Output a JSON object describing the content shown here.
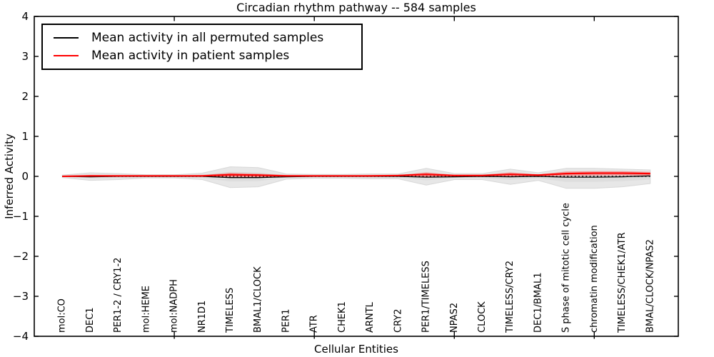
{
  "figure": {
    "background": "#ffffff"
  },
  "chart_data": {
    "type": "line",
    "title": "Circadian rhythm pathway -- 584 samples",
    "xlabel": "Cellular Entities",
    "ylabel": "Inferred Activity",
    "ylim": [
      -4,
      4
    ],
    "grid": false,
    "legend_position": "upper left",
    "ytick_values": [
      4,
      3,
      2,
      1,
      0,
      -1,
      -2,
      -3,
      -4
    ],
    "ytick_labels": [
      "4",
      "3",
      "2",
      "1",
      "0",
      "−1",
      "−2",
      "−3",
      "−4"
    ],
    "xtick_marks_at_category_numbers": [
      5,
      10,
      15,
      20
    ],
    "categories": [
      "mol:CO",
      "DEC1",
      "PER1-2 / CRY1-2",
      "mol:HEME",
      "mol:NADPH",
      "NR1D1",
      "TIMELESS",
      "BMAL1/CLOCK",
      "PER1",
      "ATR",
      "CHEK1",
      "ARNTL",
      "CRY2",
      "PER1/TIMELESS",
      "NPAS2",
      "CLOCK",
      "TIMELESS/CRY2",
      "DEC1/BMAL1",
      "S phase of mitotic cell cycle",
      "chromatin modification",
      "TIMELESS/CHEK1/ATR",
      "BMAL/CLOCK/NPAS2"
    ],
    "series": [
      {
        "name": "Mean activity in all permuted samples",
        "color": "#000000",
        "style": "solid",
        "width": 1.3,
        "values": [
          0,
          -0.01,
          0,
          0,
          0,
          0,
          -0.03,
          -0.03,
          -0.01,
          0,
          0,
          0,
          0,
          -0.02,
          -0.01,
          0,
          -0.01,
          0,
          -0.02,
          -0.02,
          -0.01,
          0.01
        ]
      },
      {
        "name": "Mean activity in patient samples",
        "color": "#ff0000",
        "style": "solid",
        "width": 2,
        "values": [
          0,
          0.01,
          0.01,
          0.01,
          0.01,
          0.01,
          0.04,
          0.03,
          0.01,
          0.01,
          0.01,
          0.01,
          0.02,
          0.05,
          0.02,
          0.02,
          0.05,
          0.03,
          0.07,
          0.08,
          0.08,
          0.07
        ]
      }
    ],
    "reference_line": {
      "y": 0,
      "color": "#000000",
      "style": "dotted"
    },
    "bands": [
      {
        "name": "permuted-envelope-outer",
        "group": "permuted",
        "color": "#e7e7e7",
        "stroke": "#d8d8d8",
        "hi": [
          0.03,
          0.09,
          0.07,
          0.04,
          0.04,
          0.08,
          0.24,
          0.22,
          0.06,
          0.05,
          0.05,
          0.06,
          0.06,
          0.2,
          0.07,
          0.07,
          0.18,
          0.09,
          0.2,
          0.2,
          0.18,
          0.16
        ],
        "lo": [
          -0.03,
          -0.1,
          -0.08,
          -0.04,
          -0.04,
          -0.08,
          -0.28,
          -0.26,
          -0.07,
          -0.05,
          -0.05,
          -0.06,
          -0.06,
          -0.22,
          -0.08,
          -0.08,
          -0.2,
          -0.1,
          -0.3,
          -0.3,
          -0.26,
          -0.18
        ]
      },
      {
        "name": "permuted-envelope-inner",
        "group": "permuted",
        "color": "#dedede",
        "stroke": "none",
        "hi": [
          0.01,
          0.04,
          0.03,
          0.02,
          0.02,
          0.04,
          0.11,
          0.1,
          0.03,
          0.02,
          0.02,
          0.03,
          0.03,
          0.09,
          0.03,
          0.03,
          0.08,
          0.04,
          0.09,
          0.09,
          0.08,
          0.07
        ],
        "lo": [
          -0.01,
          -0.05,
          -0.04,
          -0.02,
          -0.02,
          -0.04,
          -0.13,
          -0.12,
          -0.03,
          -0.02,
          -0.02,
          -0.03,
          -0.03,
          -0.1,
          -0.04,
          -0.04,
          -0.09,
          -0.05,
          -0.14,
          -0.14,
          -0.12,
          -0.08
        ]
      },
      {
        "name": "patient-band",
        "group": "patient",
        "color": "rgba(255,0,0,0.30)",
        "stroke": "none",
        "hi": [
          0.01,
          0.03,
          0.02,
          0.02,
          0.02,
          0.03,
          0.09,
          0.07,
          0.03,
          0.02,
          0.02,
          0.03,
          0.03,
          0.1,
          0.04,
          0.04,
          0.1,
          0.05,
          0.12,
          0.13,
          0.13,
          0.11
        ],
        "lo": [
          -0.01,
          -0.02,
          -0.01,
          -0.01,
          -0.01,
          -0.01,
          -0.02,
          -0.02,
          -0.01,
          -0.01,
          -0.01,
          -0.01,
          0.0,
          -0.01,
          0.0,
          0.0,
          0.0,
          0.0,
          0.01,
          0.02,
          0.02,
          0.02
        ]
      },
      {
        "name": "patient-band-core",
        "group": "patient",
        "color": "rgba(255,0,0,0.55)",
        "stroke": "none",
        "hi": [
          0.02,
          0.03,
          0.03,
          0.03,
          0.03,
          0.03,
          0.06,
          0.05,
          0.03,
          0.03,
          0.03,
          0.03,
          0.04,
          0.07,
          0.04,
          0.04,
          0.07,
          0.05,
          0.09,
          0.1,
          0.1,
          0.09
        ],
        "lo": [
          -0.01,
          0.0,
          0.0,
          0.0,
          0.0,
          0.0,
          0.02,
          0.01,
          0.0,
          0.0,
          0.0,
          0.0,
          0.01,
          0.03,
          0.01,
          0.01,
          0.03,
          0.01,
          0.05,
          0.06,
          0.06,
          0.05
        ]
      }
    ]
  }
}
